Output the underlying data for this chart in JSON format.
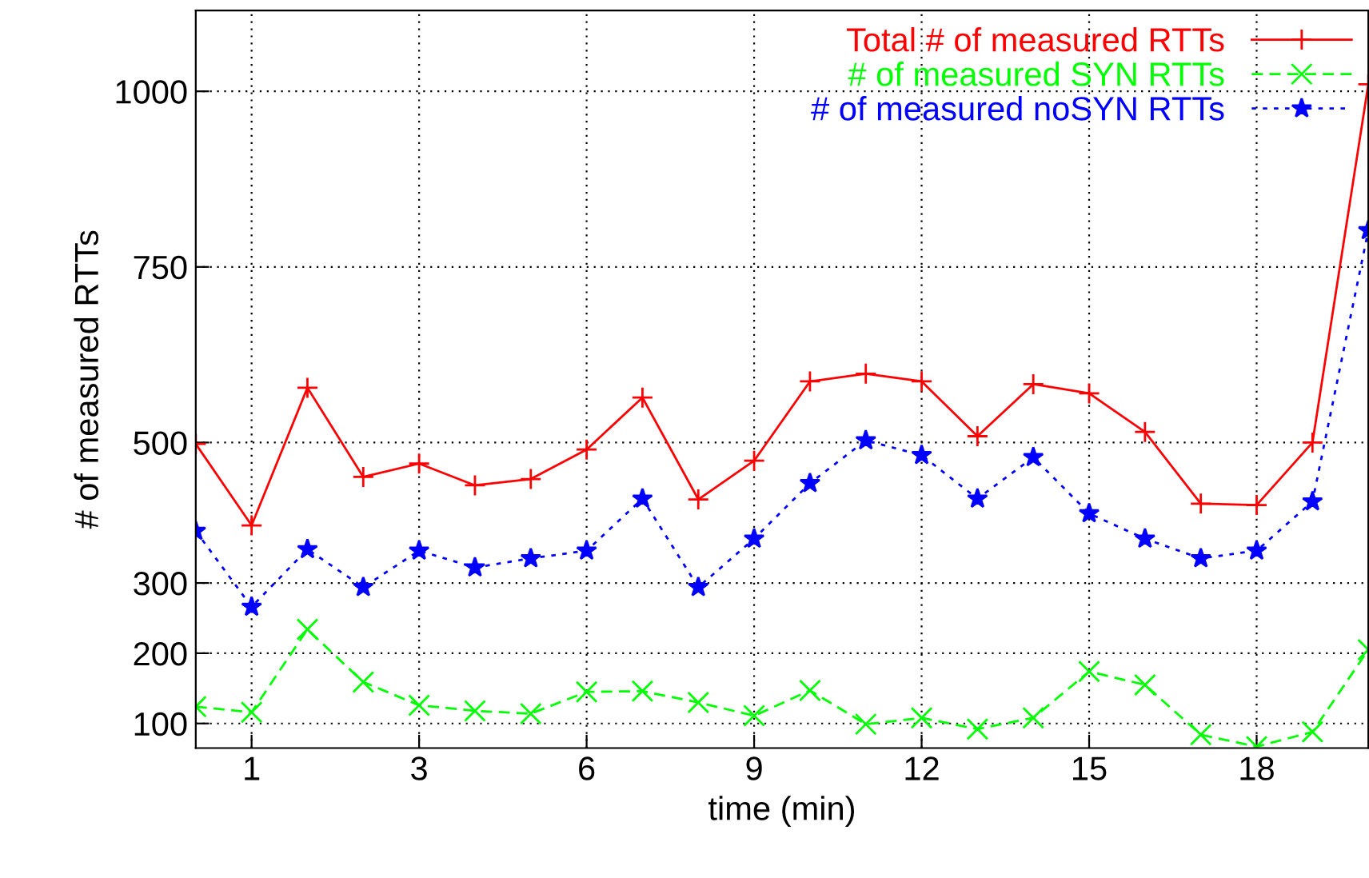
{
  "chart_data": {
    "type": "line",
    "xlabel": "time (min)",
    "ylabel": "# of measured RTTs",
    "categories": [
      null,
      "1",
      null,
      null,
      "3",
      null,
      null,
      "6",
      null,
      null,
      "9",
      null,
      null,
      "12",
      null,
      null,
      "15",
      null,
      null,
      "18",
      null,
      null
    ],
    "ylim": [
      65,
      1115
    ],
    "yticks": [
      100,
      200,
      300,
      500,
      750,
      1000
    ],
    "grid": true,
    "legend": "top right",
    "series": [
      {
        "name": "Total # of measured RTTs",
        "color": "#ff0000",
        "marker": "cross",
        "line_style": "solid",
        "values": [
          498,
          382,
          578,
          451,
          470,
          439,
          448,
          490,
          564,
          419,
          474,
          587,
          598,
          587,
          509,
          583,
          570,
          515,
          413,
          411,
          500,
          1010
        ]
      },
      {
        "name": "# of measured SYN RTTs",
        "color": "#00ff00",
        "marker": "x",
        "line_style": "dashed",
        "values": [
          124,
          116,
          234,
          159,
          126,
          118,
          114,
          145,
          146,
          130,
          111,
          147,
          99,
          108,
          92,
          108,
          174,
          155,
          84,
          67,
          88,
          205
        ]
      },
      {
        "name": "# of measured noSYN RTTs",
        "color": "#0000ff",
        "marker": "star",
        "line_style": "dotted",
        "values": [
          374,
          266,
          348,
          294,
          346,
          322,
          335,
          346,
          420,
          294,
          363,
          442,
          503,
          482,
          420,
          479,
          399,
          363,
          335,
          346,
          416,
          802
        ]
      }
    ]
  }
}
